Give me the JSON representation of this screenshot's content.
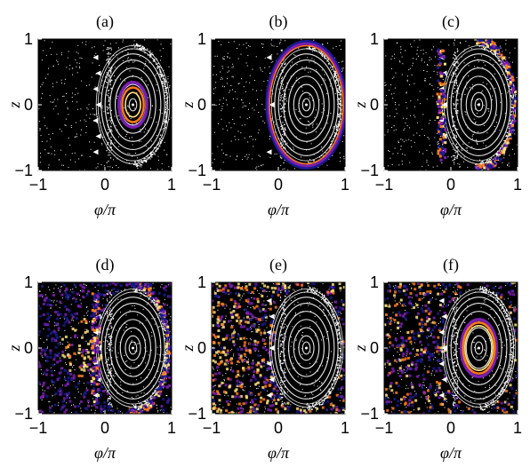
{
  "chart_data": [
    {
      "type": "scatter",
      "panel_label": "(a)",
      "xlabel": "φ/π",
      "ylabel": "z",
      "xlim": [
        -1,
        1
      ],
      "ylim": [
        -1,
        1
      ],
      "xticks": [
        "−1",
        "0",
        "1"
      ],
      "yticks": [
        "−1",
        "0",
        "1"
      ],
      "highlight": "inner-ring",
      "highlight_center": [
        0.42,
        0.0
      ],
      "highlight_radii": [
        0.08,
        0.22
      ]
    },
    {
      "type": "scatter",
      "panel_label": "(b)",
      "xlabel": "φ/π",
      "ylabel": "z",
      "xlim": [
        -1,
        1
      ],
      "ylim": [
        -1,
        1
      ],
      "xticks": [
        "−1",
        "0",
        "1"
      ],
      "yticks": [
        "−1",
        "0",
        "1"
      ],
      "highlight": "outer-ring",
      "highlight_center": [
        0.42,
        0.0
      ],
      "highlight_radii": [
        0.32,
        0.9
      ]
    },
    {
      "type": "scatter",
      "panel_label": "(c)",
      "xlabel": "φ/π",
      "ylabel": "z",
      "xlim": [
        -1,
        1
      ],
      "ylim": [
        -1,
        1
      ],
      "xticks": [
        "−1",
        "0",
        "1"
      ],
      "yticks": [
        "−1",
        "0",
        "1"
      ],
      "highlight": "island-chain",
      "highlight_center": [
        0.42,
        0.0
      ],
      "highlight_radii": [
        0.6,
        0.95
      ]
    },
    {
      "type": "scatter",
      "panel_label": "(d)",
      "xlabel": "φ/π",
      "ylabel": "z",
      "xlim": [
        -1,
        1
      ],
      "ylim": [
        -1,
        1
      ],
      "xticks": [
        "−1",
        "0",
        "1"
      ],
      "yticks": [
        "−1",
        "0",
        "1"
      ],
      "highlight": "chaotic-sea-near",
      "highlight_center": [
        0.42,
        0.0
      ],
      "highlight_radii": [
        0.6,
        0.95
      ]
    },
    {
      "type": "scatter",
      "panel_label": "(e)",
      "xlabel": "φ/π",
      "ylabel": "z",
      "xlim": [
        -1,
        1
      ],
      "ylim": [
        -1,
        1
      ],
      "xticks": [
        "−1",
        "0",
        "1"
      ],
      "yticks": [
        "−1",
        "0",
        "1"
      ],
      "highlight": "chaotic-sea-full",
      "highlight_center": [
        0.42,
        0.0
      ],
      "highlight_radii": [
        0.6,
        0.95
      ]
    },
    {
      "type": "scatter",
      "panel_label": "(f)",
      "xlabel": "φ/π",
      "ylabel": "z",
      "xlim": [
        -1,
        1
      ],
      "ylim": [
        -1,
        1
      ],
      "xticks": [
        "−1",
        "0",
        "1"
      ],
      "yticks": [
        "−1",
        "0",
        "1"
      ],
      "highlight": "inner-ring-plus-sea",
      "highlight_center": [
        0.42,
        0.0
      ],
      "highlight_radii": [
        0.25,
        0.7
      ]
    }
  ],
  "colors": {
    "background": "#000000",
    "tori": "#ffffff",
    "glow_low": "#1a1a8c",
    "glow_mid": "#7a1fb0",
    "glow_high": "#ff7a1a",
    "glow_peak": "#ffe27a"
  }
}
